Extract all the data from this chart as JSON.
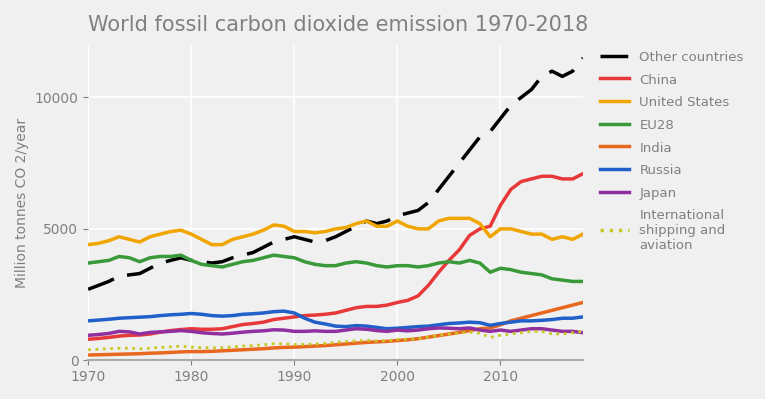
{
  "title": "World fossil carbon dioxide emission 1970-2018",
  "ylabel": "Million tonnes CO 2/year",
  "years": [
    1970,
    1971,
    1972,
    1973,
    1974,
    1975,
    1976,
    1977,
    1978,
    1979,
    1980,
    1981,
    1982,
    1983,
    1984,
    1985,
    1986,
    1987,
    1988,
    1989,
    1990,
    1991,
    1992,
    1993,
    1994,
    1995,
    1996,
    1997,
    1998,
    1999,
    2000,
    2001,
    2002,
    2003,
    2004,
    2005,
    2006,
    2007,
    2008,
    2009,
    2010,
    2011,
    2012,
    2013,
    2014,
    2015,
    2016,
    2017,
    2018
  ],
  "other_countries": [
    2700,
    2850,
    3000,
    3200,
    3250,
    3300,
    3500,
    3700,
    3800,
    3900,
    3800,
    3750,
    3700,
    3750,
    3900,
    4000,
    4100,
    4300,
    4500,
    4600,
    4700,
    4600,
    4500,
    4550,
    4700,
    4900,
    5100,
    5300,
    5200,
    5300,
    5500,
    5600,
    5700,
    6000,
    6500,
    7000,
    7500,
    8000,
    8500,
    8700,
    9200,
    9700,
    10000,
    10300,
    10800,
    11000,
    10800,
    11000,
    11500
  ],
  "china": [
    800,
    830,
    870,
    920,
    950,
    960,
    1000,
    1070,
    1130,
    1170,
    1200,
    1180,
    1180,
    1200,
    1280,
    1360,
    1400,
    1450,
    1550,
    1600,
    1650,
    1700,
    1720,
    1750,
    1800,
    1900,
    2000,
    2050,
    2050,
    2100,
    2200,
    2280,
    2450,
    2850,
    3350,
    3800,
    4200,
    4750,
    5000,
    5100,
    5900,
    6500,
    6800,
    6900,
    7000,
    7000,
    6900,
    6900,
    7100
  ],
  "united_states": [
    4400,
    4450,
    4550,
    4700,
    4600,
    4500,
    4700,
    4800,
    4900,
    4950,
    4800,
    4600,
    4400,
    4400,
    4600,
    4700,
    4800,
    4950,
    5150,
    5100,
    4900,
    4900,
    4850,
    4900,
    5000,
    5050,
    5200,
    5300,
    5100,
    5100,
    5300,
    5100,
    5000,
    5000,
    5300,
    5400,
    5400,
    5400,
    5200,
    4700,
    5000,
    5000,
    4900,
    4800,
    4800,
    4600,
    4700,
    4600,
    4800
  ],
  "eu28": [
    3700,
    3750,
    3800,
    3950,
    3900,
    3750,
    3900,
    3950,
    3950,
    4000,
    3800,
    3650,
    3600,
    3550,
    3650,
    3750,
    3800,
    3900,
    4000,
    3950,
    3900,
    3750,
    3650,
    3600,
    3600,
    3700,
    3750,
    3700,
    3600,
    3550,
    3600,
    3600,
    3550,
    3600,
    3700,
    3750,
    3700,
    3800,
    3700,
    3350,
    3500,
    3450,
    3350,
    3300,
    3250,
    3100,
    3050,
    3000,
    3000
  ],
  "india": [
    200,
    210,
    220,
    230,
    240,
    250,
    270,
    280,
    300,
    320,
    330,
    330,
    340,
    360,
    380,
    400,
    420,
    440,
    470,
    490,
    500,
    520,
    540,
    560,
    590,
    620,
    650,
    680,
    700,
    720,
    750,
    780,
    820,
    880,
    940,
    1000,
    1060,
    1130,
    1200,
    1230,
    1350,
    1500,
    1600,
    1700,
    1800,
    1900,
    2000,
    2100,
    2200
  ],
  "russia": [
    1500,
    1530,
    1560,
    1600,
    1620,
    1640,
    1660,
    1700,
    1730,
    1750,
    1780,
    1750,
    1700,
    1680,
    1700,
    1750,
    1770,
    1800,
    1850,
    1870,
    1800,
    1600,
    1450,
    1380,
    1300,
    1280,
    1320,
    1300,
    1250,
    1200,
    1220,
    1250,
    1280,
    1300,
    1350,
    1400,
    1420,
    1450,
    1430,
    1330,
    1400,
    1450,
    1500,
    1500,
    1520,
    1550,
    1600,
    1600,
    1650
  ],
  "japan": [
    950,
    980,
    1020,
    1100,
    1080,
    1000,
    1060,
    1080,
    1100,
    1130,
    1100,
    1050,
    1020,
    1000,
    1030,
    1070,
    1100,
    1120,
    1160,
    1150,
    1100,
    1100,
    1120,
    1100,
    1100,
    1150,
    1200,
    1180,
    1130,
    1100,
    1150,
    1120,
    1150,
    1200,
    1230,
    1220,
    1200,
    1230,
    1150,
    1100,
    1150,
    1100,
    1150,
    1200,
    1200,
    1150,
    1100,
    1100,
    1050
  ],
  "international": [
    400,
    420,
    440,
    460,
    460,
    430,
    460,
    490,
    510,
    540,
    500,
    480,
    470,
    480,
    510,
    540,
    560,
    590,
    630,
    630,
    600,
    600,
    620,
    640,
    680,
    710,
    740,
    760,
    730,
    740,
    790,
    800,
    820,
    880,
    950,
    1000,
    1040,
    1070,
    1030,
    870,
    950,
    1000,
    1050,
    1100,
    1100,
    1000,
    1000,
    1050,
    1100
  ],
  "colors": {
    "other_countries": "#000000",
    "china": "#e8393a",
    "united_states": "#f0a500",
    "eu28": "#3a9a3a",
    "india": "#e86820",
    "russia": "#2060c8",
    "japan": "#9030a0",
    "international": "#c8c820"
  },
  "bg_color": "#f0f0f0",
  "plot_bg_color": "#f0f0f0",
  "title_color": "#808080",
  "ylabel_color": "#808080",
  "tick_color": "#808080",
  "xlim": [
    1970,
    2018
  ],
  "ylim": [
    0,
    12000
  ],
  "yticks": [
    0,
    5000,
    10000
  ],
  "xticks": [
    1970,
    1980,
    1990,
    2000,
    2010
  ]
}
